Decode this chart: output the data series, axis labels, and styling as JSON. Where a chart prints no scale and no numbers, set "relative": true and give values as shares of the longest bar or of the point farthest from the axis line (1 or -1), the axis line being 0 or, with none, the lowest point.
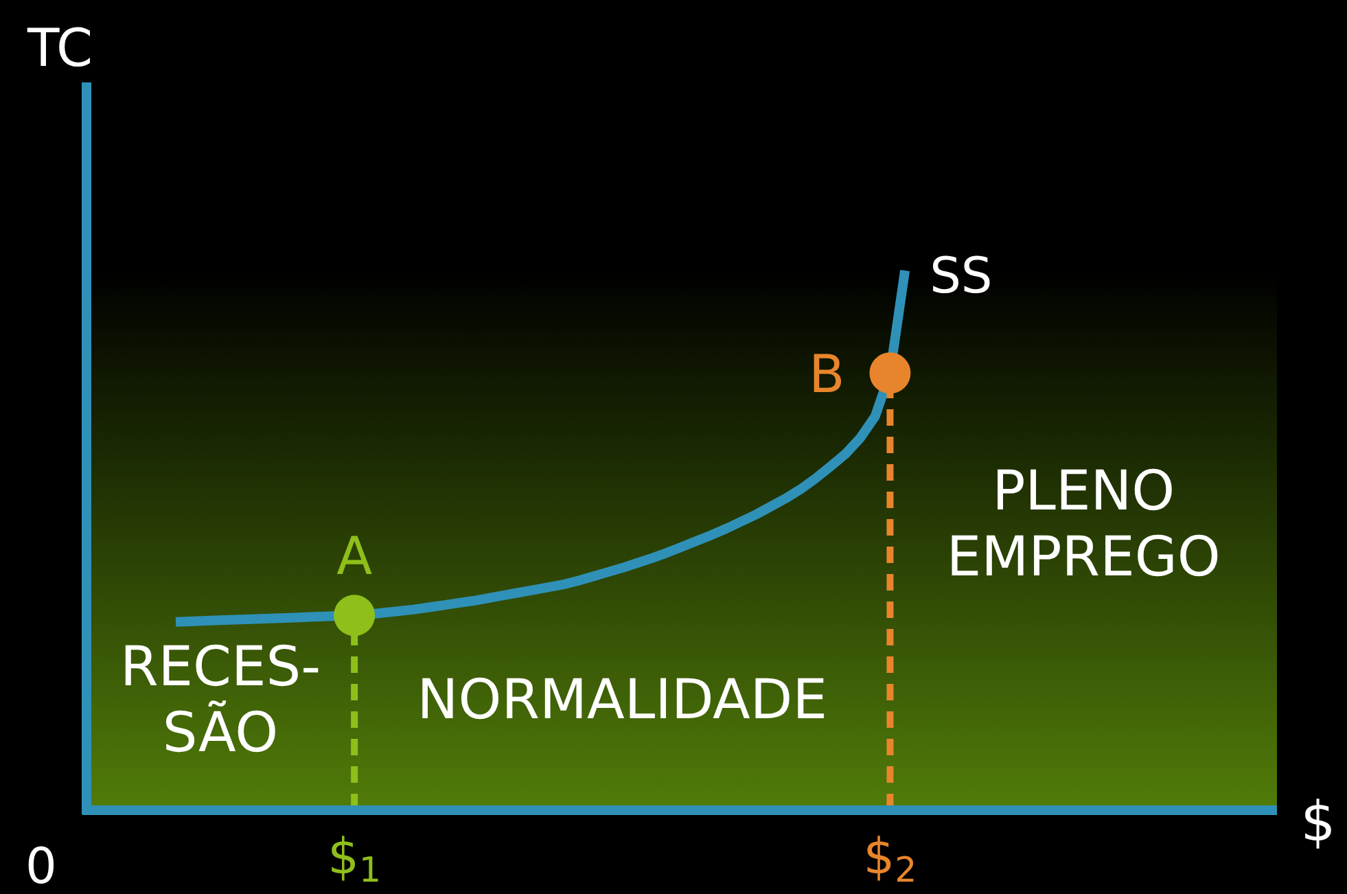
{
  "chart_data": {
    "type": "line",
    "relative": true,
    "xlabel": "$",
    "ylabel": "TC",
    "tick_labels": "x",
    "categories": [
      null,
      null,
      null,
      null,
      null,
      null,
      null,
      null,
      null,
      null,
      null,
      null,
      null,
      null,
      null,
      null,
      null,
      null,
      "$$_{1}$",
      null,
      null,
      null,
      null,
      null,
      null,
      null,
      null,
      null,
      null,
      null,
      null,
      null,
      null,
      null,
      null,
      null,
      null,
      null,
      null,
      null,
      null,
      null,
      null,
      null,
      null,
      null,
      null,
      null,
      null,
      null,
      null,
      null,
      null,
      null,
      "$$_{2}$",
      null,
      null,
      null,
      null,
      null,
      null,
      null,
      null,
      null,
      null,
      null,
      null,
      null,
      null,
      null,
      null,
      null,
      null,
      null,
      null,
      null,
      null,
      null,
      null,
      null,
      null
    ],
    "series": [
      {
        "name": "SS",
        "color": "#2f91b8",
        "values": [
          null,
          null,
          null,
          null,
          null,
          null,
          0.349,
          0.35,
          0.351,
          0.352,
          0.353,
          0.354,
          0.355,
          0.356,
          0.357,
          0.358,
          0.359,
          0.36,
          0.361,
          0.363,
          0.366,
          0.369,
          0.372,
          0.376,
          0.38,
          0.384,
          0.388,
          0.393,
          0.398,
          0.403,
          0.408,
          0.413,
          0.418,
          0.425,
          0.433,
          0.441,
          0.449,
          0.458,
          0.467,
          0.477,
          0.488,
          0.499,
          0.51,
          0.522,
          0.535,
          0.548,
          0.563,
          0.578,
          0.595,
          0.615,
          0.637,
          0.66,
          0.69,
          0.73,
          0.81,
          1,
          null,
          null,
          null,
          null,
          null,
          null,
          null,
          null,
          null,
          null,
          null,
          null,
          null,
          null,
          null,
          null,
          null,
          null,
          null,
          null,
          null,
          null,
          null,
          null,
          null
        ]
      },
      {
        "type": "lollipop",
        "line_style": "dashed",
        "marker": "circle",
        "color": "#8fbf1a",
        "values": [
          null,
          null,
          null,
          null,
          null,
          null,
          null,
          null,
          null,
          null,
          null,
          null,
          null,
          null,
          null,
          null,
          null,
          null,
          0.361,
          null,
          null,
          null,
          null,
          null,
          null,
          null,
          null,
          null,
          null,
          null,
          null,
          null,
          null,
          null,
          null,
          null,
          null,
          null,
          null,
          null,
          null,
          null,
          null,
          null,
          null,
          null,
          null,
          null,
          null,
          null,
          null,
          null,
          null,
          null,
          null,
          null,
          null,
          null,
          null,
          null,
          null,
          null,
          null,
          null,
          null,
          null,
          null,
          null,
          null,
          null,
          null,
          null,
          null,
          null,
          null,
          null,
          null,
          null,
          null,
          null,
          null
        ]
      },
      {
        "type": "lollipop",
        "line_style": "dashed",
        "marker": "circle",
        "color": "#e8852c",
        "values": [
          null,
          null,
          null,
          null,
          null,
          null,
          null,
          null,
          null,
          null,
          null,
          null,
          null,
          null,
          null,
          null,
          null,
          null,
          null,
          null,
          null,
          null,
          null,
          null,
          null,
          null,
          null,
          null,
          null,
          null,
          null,
          null,
          null,
          null,
          null,
          null,
          null,
          null,
          null,
          null,
          null,
          null,
          null,
          null,
          null,
          null,
          null,
          null,
          null,
          null,
          null,
          null,
          null,
          null,
          0.81,
          null,
          null,
          null,
          null,
          null,
          null,
          null,
          null,
          null,
          null,
          null,
          null,
          null,
          null,
          null,
          null,
          null,
          null,
          null,
          null,
          null,
          null,
          null,
          null,
          null,
          null
        ]
      }
    ],
    "annotations": [
      "0",
      "RECES-\nSÃO",
      "NORMALIDADE",
      "PLENO\nEMPREGO",
      {
        "text": "A",
        "x": "$$_{1}$",
        "y": 0.361
      },
      {
        "text": "B",
        "x": "$$_{2}$",
        "y": 0.81
      }
    ]
  }
}
